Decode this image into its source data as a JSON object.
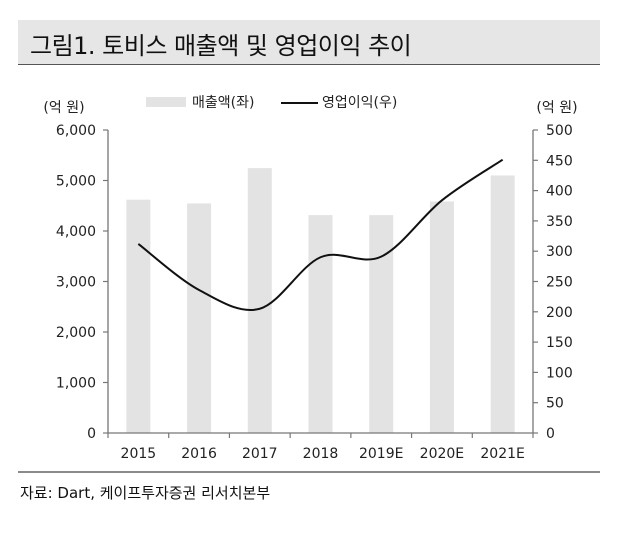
{
  "title": "그림1. 토비스 매출액 및 영업이익 추이",
  "source": "자료: Dart, 케이프투자증권 리서치본부",
  "chart_data": {
    "type": "bar+line",
    "categories": [
      "2015",
      "2016",
      "2017",
      "2018",
      "2019E",
      "2020E",
      "2021E"
    ],
    "series": [
      {
        "name": "매출액(좌)",
        "type": "bar",
        "axis": "left",
        "color": "#e3e3e3",
        "values": [
          4620,
          4545,
          5245,
          4315,
          4315,
          4585,
          5100
        ]
      },
      {
        "name": "영업이익(우)",
        "type": "line",
        "axis": "right",
        "color": "#111111",
        "values": [
          312,
          236,
          205,
          290,
          291,
          384,
          451
        ]
      }
    ],
    "left_axis": {
      "label": "(억 원)",
      "range": [
        0,
        6000
      ],
      "ticks": [
        0,
        1000,
        2000,
        3000,
        4000,
        5000,
        6000
      ],
      "tick_labels": [
        "0",
        "1,000",
        "2,000",
        "3,000",
        "4,000",
        "5,000",
        "6,000"
      ]
    },
    "right_axis": {
      "label": "(억 원)",
      "range": [
        0,
        500
      ],
      "ticks": [
        0,
        50,
        100,
        150,
        200,
        250,
        300,
        350,
        400,
        450,
        500
      ],
      "tick_labels": [
        "0",
        "50",
        "100",
        "150",
        "200",
        "250",
        "300",
        "350",
        "400",
        "450",
        "500"
      ]
    },
    "legend_position": "top-center",
    "grid": false
  }
}
